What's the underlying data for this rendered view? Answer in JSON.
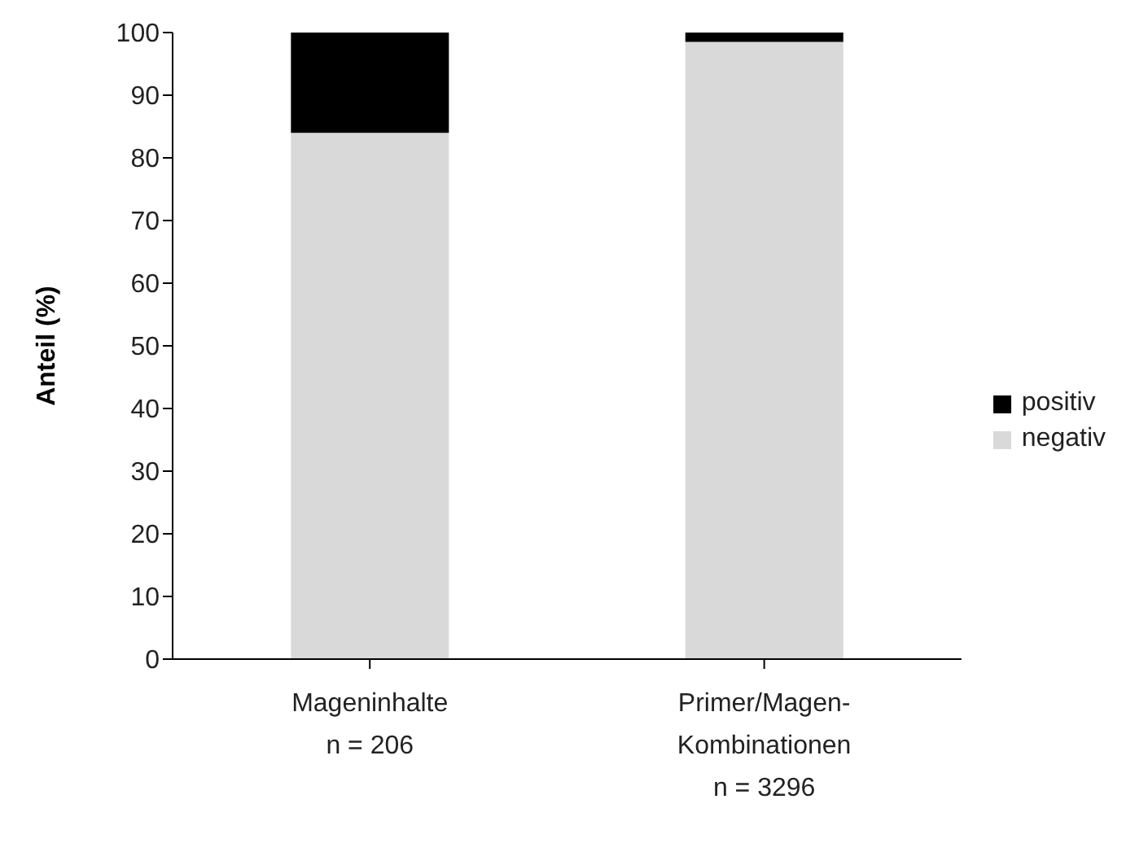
{
  "chart_data": {
    "type": "bar",
    "stacked": true,
    "ylabel": "Anteil (%)",
    "categories": [
      "Mageninhalte\nn = 206",
      "Primer/Magen-\nKombinationen\nn = 3296"
    ],
    "series": [
      {
        "name": "negativ",
        "color": "#d9d9d9",
        "values": [
          84,
          98.5
        ]
      },
      {
        "name": "positiv",
        "color": "#000000",
        "values": [
          16,
          1.5
        ]
      }
    ],
    "ylim": [
      0,
      100
    ],
    "yticks": [
      0,
      10,
      20,
      30,
      40,
      50,
      60,
      70,
      80,
      90,
      100
    ],
    "legend": "right"
  }
}
